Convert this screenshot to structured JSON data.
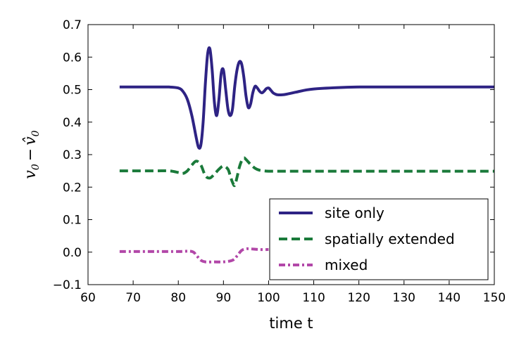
{
  "chart_data": {
    "type": "line",
    "title": "",
    "xlabel": "time t",
    "ylabel": "v0 − v̂0",
    "ylabel_parts": {
      "left": "v",
      "left_sub": "0",
      "minus": "−",
      "right": "v̂",
      "right_sub": "0"
    },
    "xlim": [
      60,
      150
    ],
    "ylim": [
      -0.1,
      0.7
    ],
    "xticks": [
      60,
      70,
      80,
      90,
      100,
      110,
      120,
      130,
      140,
      150
    ],
    "yticks": [
      -0.1,
      0.0,
      0.1,
      0.2,
      0.3,
      0.4,
      0.5,
      0.6,
      0.7
    ],
    "xtick_labels": [
      "60",
      "70",
      "80",
      "90",
      "100",
      "110",
      "120",
      "130",
      "140",
      "150"
    ],
    "ytick_labels": [
      "−0.1",
      "0.0",
      "0.1",
      "0.2",
      "0.3",
      "0.4",
      "0.5",
      "0.6",
      "0.7"
    ],
    "grid": false,
    "legend_position": "lower-right",
    "series": [
      {
        "name": "site only",
        "color": "#2e2384",
        "style": "solid",
        "x": [
          67,
          70,
          75,
          78,
          80,
          81,
          82,
          83,
          84,
          84.5,
          85,
          85.5,
          86,
          86.5,
          87,
          87.5,
          88,
          88.5,
          89,
          89.5,
          90,
          90.5,
          91,
          91.5,
          92,
          92.5,
          93,
          93.5,
          94,
          94.5,
          95,
          95.5,
          96,
          96.5,
          97,
          97.5,
          98,
          98.5,
          99,
          99.5,
          100,
          100.5,
          101,
          101.5,
          102,
          103,
          104,
          106,
          108,
          110,
          115,
          120,
          125,
          130,
          140,
          150
        ],
        "values": [
          0.508,
          0.508,
          0.508,
          0.508,
          0.505,
          0.495,
          0.47,
          0.42,
          0.35,
          0.322,
          0.33,
          0.4,
          0.52,
          0.61,
          0.625,
          0.56,
          0.46,
          0.42,
          0.47,
          0.55,
          0.56,
          0.5,
          0.44,
          0.42,
          0.44,
          0.51,
          0.56,
          0.585,
          0.58,
          0.54,
          0.48,
          0.445,
          0.455,
          0.49,
          0.51,
          0.505,
          0.495,
          0.49,
          0.495,
          0.503,
          0.505,
          0.498,
          0.49,
          0.486,
          0.484,
          0.484,
          0.486,
          0.492,
          0.498,
          0.502,
          0.506,
          0.508,
          0.508,
          0.508,
          0.508,
          0.508
        ]
      },
      {
        "name": "spatially extended",
        "color": "#1a7a3a",
        "style": "dashed",
        "x": [
          67,
          70,
          75,
          78,
          80,
          81,
          82,
          83,
          84,
          85,
          86,
          87,
          88,
          89,
          90,
          91,
          91.5,
          92,
          92.5,
          93,
          93.5,
          94,
          94.5,
          95,
          96,
          97,
          98,
          99,
          100,
          101,
          103,
          105,
          110,
          120,
          130,
          140,
          150
        ],
        "values": [
          0.25,
          0.25,
          0.25,
          0.25,
          0.245,
          0.242,
          0.25,
          0.268,
          0.28,
          0.268,
          0.235,
          0.228,
          0.24,
          0.255,
          0.265,
          0.255,
          0.235,
          0.215,
          0.205,
          0.23,
          0.26,
          0.28,
          0.29,
          0.285,
          0.27,
          0.258,
          0.252,
          0.25,
          0.249,
          0.249,
          0.249,
          0.249,
          0.249,
          0.249,
          0.249,
          0.249,
          0.249
        ]
      },
      {
        "name": "mixed",
        "color": "#b247a8",
        "style": "dashdot",
        "x": [
          67,
          70,
          75,
          80,
          83,
          84,
          85,
          86,
          88,
          90,
          92,
          93,
          94,
          95,
          96,
          98,
          100
        ],
        "values": [
          0.002,
          0.002,
          0.002,
          0.002,
          0.002,
          -0.01,
          -0.025,
          -0.03,
          -0.03,
          -0.03,
          -0.025,
          -0.012,
          0.005,
          0.01,
          0.01,
          0.008,
          0.008
        ]
      }
    ]
  }
}
